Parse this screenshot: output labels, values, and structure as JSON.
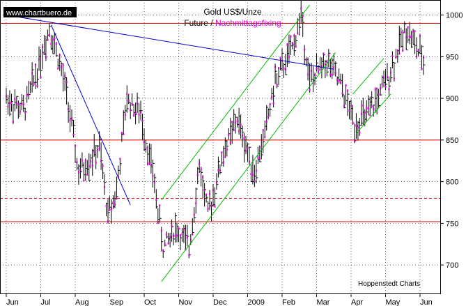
{
  "chart_data": {
    "type": "ohlc",
    "watermark": "www.chartbuero.de",
    "title": "Gold US$/Unze",
    "subtitle_future": "Future",
    "subtitle_separator": " / ",
    "subtitle_fixing": "Nachmittagsfixing",
    "credit": "Hoppenstedt Charts",
    "y_ticks": [
      700,
      750,
      800,
      850,
      900,
      950,
      1000
    ],
    "ylim": [
      665,
      1018
    ],
    "x_ticks": [
      "Jun",
      "Jul",
      "Aug",
      "Sep",
      "Oct",
      "Nov",
      "Dec",
      "2009",
      "Feb",
      "Mar",
      "Apr",
      "May",
      "Jun"
    ],
    "grid": true,
    "colors": {
      "price_bars": "#000000",
      "fixing": "#cc00cc",
      "support_resistance": "#dd0000",
      "downtrend": "#0000cc",
      "uptrend": "#00bb00",
      "grid": "#000000",
      "subtitle_future": "#000000",
      "subtitle_fixing": "#cc00cc"
    },
    "horizontal_levels": [
      {
        "value": 990,
        "style": "solid"
      },
      {
        "value": 850,
        "style": "solid"
      },
      {
        "value": 780,
        "style": "dashed"
      },
      {
        "value": 752,
        "style": "solid"
      }
    ],
    "price_path": [
      {
        "pos": 0.0,
        "price": 900
      },
      {
        "pos": 0.5,
        "price": 885
      },
      {
        "pos": 0.9,
        "price": 935
      },
      {
        "pos": 1.25,
        "price": 985
      },
      {
        "pos": 1.5,
        "price": 950
      },
      {
        "pos": 1.75,
        "price": 905
      },
      {
        "pos": 2.1,
        "price": 810
      },
      {
        "pos": 2.4,
        "price": 825
      },
      {
        "pos": 2.7,
        "price": 840
      },
      {
        "pos": 2.95,
        "price": 760
      },
      {
        "pos": 3.2,
        "price": 790
      },
      {
        "pos": 3.5,
        "price": 900
      },
      {
        "pos": 3.9,
        "price": 880
      },
      {
        "pos": 4.25,
        "price": 810
      },
      {
        "pos": 4.55,
        "price": 720
      },
      {
        "pos": 4.9,
        "price": 745
      },
      {
        "pos": 5.3,
        "price": 720
      },
      {
        "pos": 5.6,
        "price": 820
      },
      {
        "pos": 5.85,
        "price": 760
      },
      {
        "pos": 6.3,
        "price": 835
      },
      {
        "pos": 6.7,
        "price": 875
      },
      {
        "pos": 7.2,
        "price": 810
      },
      {
        "pos": 7.45,
        "price": 850
      },
      {
        "pos": 7.8,
        "price": 920
      },
      {
        "pos": 8.3,
        "price": 960
      },
      {
        "pos": 8.55,
        "price": 1000
      },
      {
        "pos": 8.8,
        "price": 920
      },
      {
        "pos": 9.3,
        "price": 945
      },
      {
        "pos": 9.7,
        "price": 915
      },
      {
        "pos": 10.1,
        "price": 870
      },
      {
        "pos": 10.5,
        "price": 880
      },
      {
        "pos": 10.9,
        "price": 910
      },
      {
        "pos": 11.2,
        "price": 940
      },
      {
        "pos": 11.6,
        "price": 985
      },
      {
        "pos": 12.15,
        "price": 940
      }
    ],
    "trend_lines": [
      {
        "kind": "downtrend",
        "points": [
          {
            "pos": 0.0,
            "price": 1000
          },
          {
            "pos": 9.5,
            "price": 935
          }
        ]
      },
      {
        "kind": "downtrend",
        "points": [
          {
            "pos": 1.3,
            "price": 988
          },
          {
            "pos": 3.6,
            "price": 772
          }
        ]
      },
      {
        "kind": "uptrend",
        "points": [
          {
            "pos": 4.5,
            "price": 680
          },
          {
            "pos": 9.55,
            "price": 955
          }
        ]
      },
      {
        "kind": "uptrend",
        "points": [
          {
            "pos": 4.5,
            "price": 778
          },
          {
            "pos": 8.8,
            "price": 1012
          }
        ]
      },
      {
        "kind": "uptrend",
        "points": [
          {
            "pos": 10.15,
            "price": 858
          },
          {
            "pos": 11.15,
            "price": 905
          }
        ]
      },
      {
        "kind": "uptrend",
        "points": [
          {
            "pos": 10.05,
            "price": 905
          },
          {
            "pos": 10.95,
            "price": 948
          }
        ]
      }
    ]
  }
}
